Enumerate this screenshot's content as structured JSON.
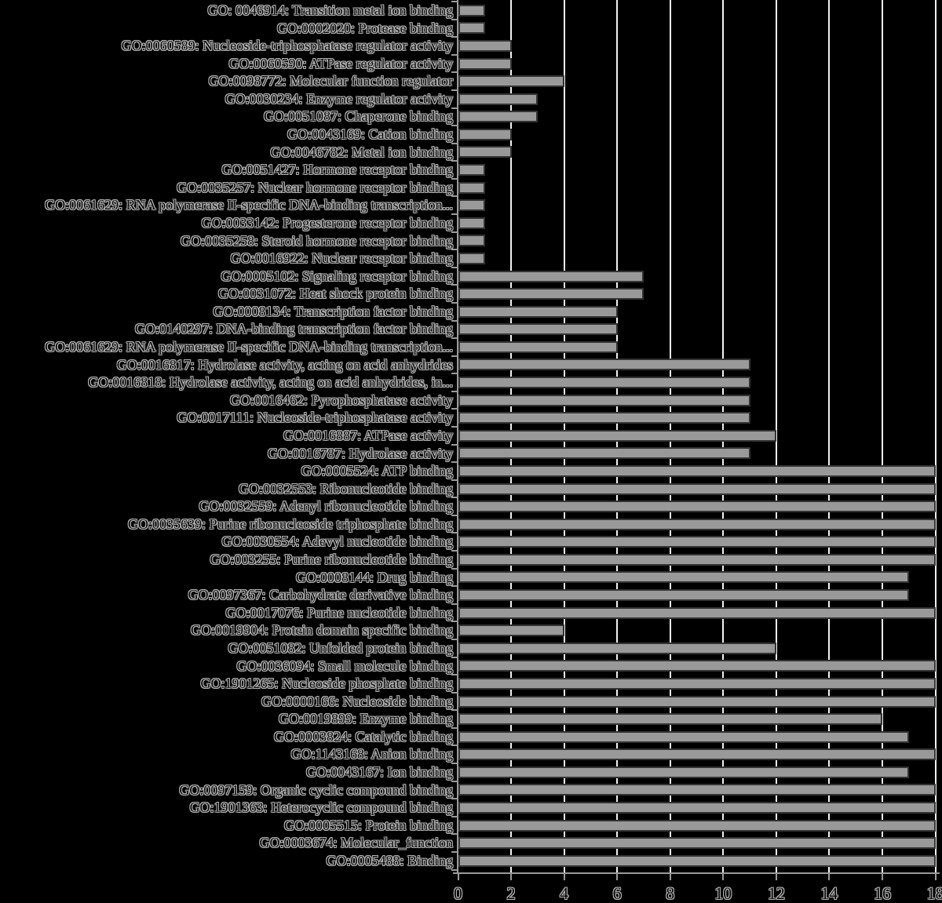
{
  "figure": {
    "background": "#000000",
    "bar_fill": "#999999",
    "bar_border": "#333333",
    "gridline_color": "#f2f2f2",
    "axis_color": "#9a9a9a",
    "text_fill": "#0a0a0a",
    "text_halo": "#b4b4b4"
  },
  "chart_data": {
    "type": "bar",
    "orientation": "horizontal",
    "title": "",
    "xlabel": "",
    "ylabel": "",
    "xlim": [
      0,
      18
    ],
    "grid": true,
    "x_ticks": [
      0,
      2,
      4,
      6,
      8,
      10,
      12,
      14,
      16,
      18
    ],
    "x_tick_labels": [
      "0",
      "2",
      "4",
      "6",
      "8",
      "10",
      "12",
      "14",
      "16",
      "18"
    ],
    "categories": [
      "GO: 0046914: Transition metal ion binding",
      "GO:0002020: Protease binding",
      "GO:0060589: Nucleoside-triphosphatase regulator activity",
      "GO:0060590: ATPase regulator activity",
      "GO:0098772: Molecular function regulator",
      "GO:0030234: Enzyme regulator activity",
      "GO:0051087: Chaperone binding",
      "GO:0043169: Cation binding",
      "GO:0046782: Metal ion binding",
      "GO:0051427: Hormone receptor binding",
      "GO:0035257: Nuclear hormone receptor binding",
      "GO:0061629: RNA polymerase II-specific DNA-binding transcription...",
      "GO:0033142: Progesterone receptor binding",
      "GO:0035258: Steroid hormone receptor binding",
      "GO:0016922: Nuclear receptor binding",
      "GO:0005102: Signaling receptor binding",
      "GO:0031072: Heat shock protein binding",
      "GO:0008134: Transcription factor binding",
      "GO:0140297: DNA-binding transcription factor binding",
      "GO:0061629: RNA polymerase II-specific DNA-binding transcription...",
      "GO:0016817: Hydrolase activity, acting on acid anhydrides",
      "GO:0016818: Hydrolase activity, acting on acid anhydrides, in...",
      "GO:0016462: Pyrophosphatase activity",
      "GO:0017111: Nucleoside-triphosphatase activity",
      "GO:0016887: ATPase activity",
      "GO:0016787: Hydrolase activity",
      "GO:0005524: ATP binding",
      "GO:0032553: Ribonucleotide binding",
      "GO:0032559: Adenyl ribonucleotide binding",
      "GO:0035639: Purine ribonucleoside triphosphate binding",
      "GO:0030554: Adevyl nucleotide binding",
      "GO:003255: Purine ribonucleotide binding",
      "GO:0008144: Drug binding",
      "GO:0097367: Carbohydrate derivative binding",
      "GO:0017076: Purine nucleotide binding",
      "GO:0019904: Protein domain specific binding",
      "GO:0051082: Unfolded protein binding",
      "GO:0036094: Small molecule binding",
      "GO:1901265: Nucleoside phosphate binding",
      "GO:0000166: Nucleoside binding",
      "GO:0019899: Enzyme binding",
      "GO:0003824: Catalytic binding",
      "GO:1143168: Anion binding",
      "GO:0043167: Ion binding",
      "GO:0097159: Organic cyclic compound binding",
      "GO:1901363: Heterocyclic compound binding",
      "GO:0005515: Protein binding",
      "GO:0003674: Molecular_function",
      "GO:0005488: Binding"
    ],
    "values": [
      1,
      1,
      2,
      2,
      4,
      3,
      3,
      2,
      2,
      1,
      1,
      1,
      1,
      1,
      1,
      7,
      7,
      6,
      6,
      6,
      11,
      11,
      11,
      11,
      12,
      11,
      18,
      18,
      18,
      18,
      18,
      18,
      17,
      17,
      18,
      4,
      12,
      18,
      18,
      18,
      16,
      17,
      18,
      17,
      18,
      18,
      18,
      18,
      18
    ]
  }
}
